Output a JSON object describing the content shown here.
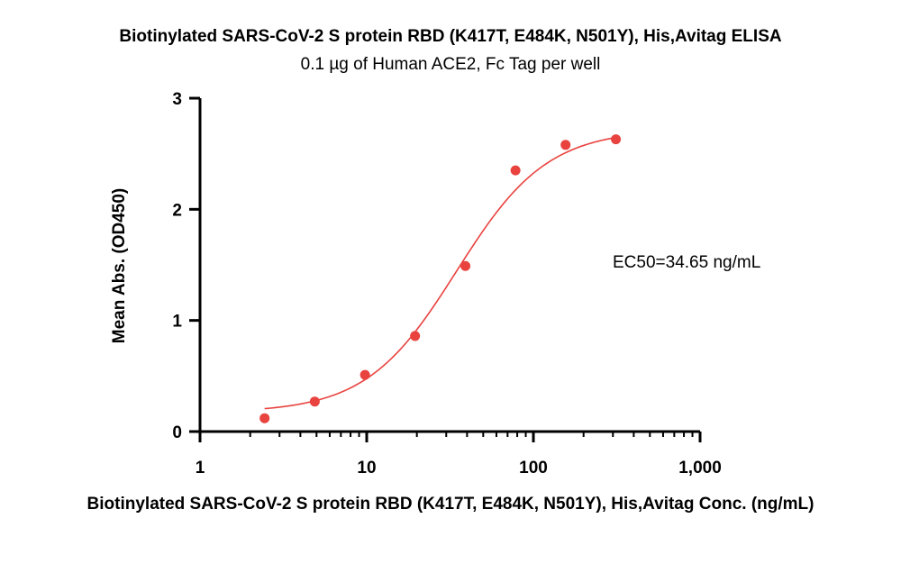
{
  "chart_data": {
    "type": "scatter",
    "title": "Biotinylated SARS-CoV-2 S protein RBD (K417T, E484K, N501Y), His,Avitag ELISA",
    "subtitle": "0.1 µg of Human ACE2, Fc Tag per well",
    "xlabel": "Biotinylated SARS-CoV-2 S protein RBD (K417T, E484K, N501Y), His,Avitag Conc. (ng/mL)",
    "ylabel": "Mean Abs. (OD450)",
    "x_scale": "log",
    "xlim": [
      1,
      1000
    ],
    "ylim": [
      0,
      3
    ],
    "x_ticks": [
      1,
      10,
      100,
      1000
    ],
    "x_tick_labels": [
      "1",
      "10",
      "100",
      "1,000"
    ],
    "y_ticks": [
      0,
      1,
      2,
      3
    ],
    "y_tick_labels": [
      "0",
      "1",
      "2",
      "3"
    ],
    "grid": false,
    "annotation": "EC50=34.65 ng/mL",
    "color": "#e8433f",
    "series": [
      {
        "x": [
          2.44,
          4.88,
          9.77,
          19.5,
          39.1,
          78.1,
          156,
          312.5
        ],
        "y": [
          0.12,
          0.27,
          0.51,
          0.86,
          1.49,
          2.35,
          2.58,
          2.63
        ],
        "fit": {
          "model": "4PL",
          "bottom": 0.17,
          "top": 2.72,
          "ec50": 34.65,
          "hill": 1.6,
          "x_range": [
            2.44,
            312.5
          ]
        }
      }
    ]
  }
}
